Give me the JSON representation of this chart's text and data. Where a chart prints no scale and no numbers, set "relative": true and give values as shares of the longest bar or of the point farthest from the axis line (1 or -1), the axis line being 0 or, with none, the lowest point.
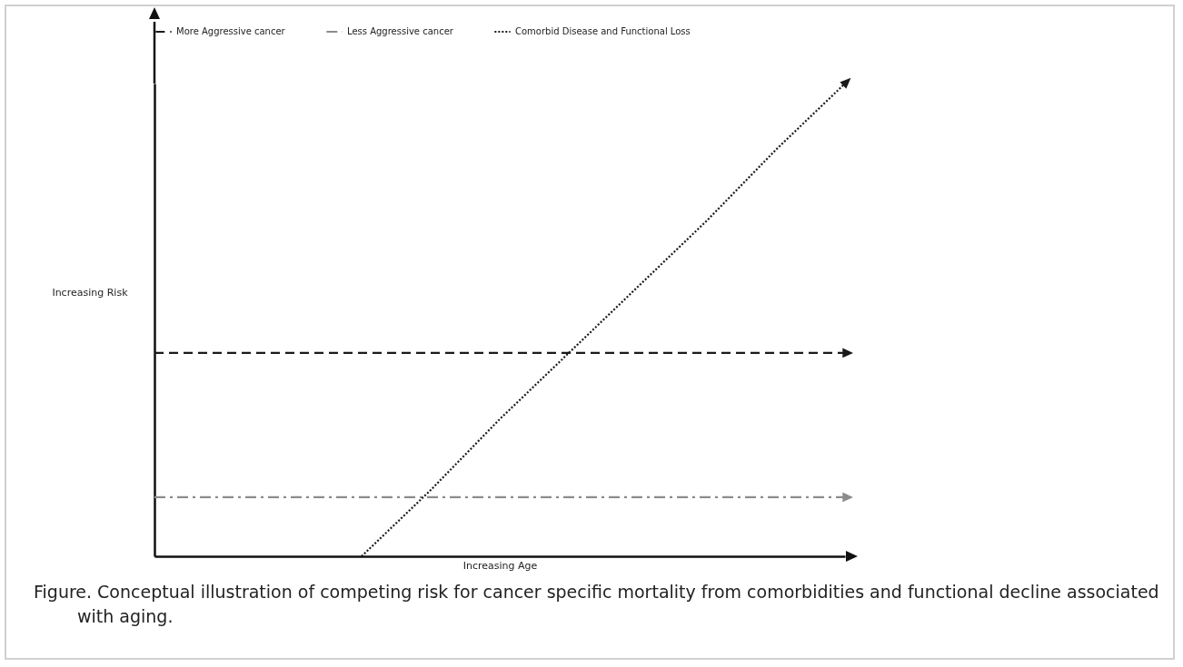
{
  "chart_data": {
    "type": "line",
    "relative": true,
    "xlabel": "Increasing Age",
    "ylabel": "Increasing Risk",
    "legend": "top",
    "grid": false,
    "marker": "none",
    "categories": [
      null,
      null,
      null,
      null,
      null,
      null,
      null,
      null,
      null,
      null,
      null
    ],
    "series": [
      {
        "name": "More Aggressive cancer",
        "color": "#1a1a1a",
        "line_style": "dashed",
        "values": [
          0.43,
          0.43,
          0.43,
          0.43,
          0.43,
          0.43,
          0.43,
          0.43,
          0.43,
          0.43,
          0.43
        ]
      },
      {
        "name": "Less Aggressive cancer",
        "color": "#8c8c8c",
        "line_style": "dashdot",
        "values": [
          0.125,
          0.125,
          0.125,
          0.125,
          0.125,
          0.125,
          0.125,
          0.125,
          0.125,
          0.125,
          0.125
        ]
      },
      {
        "name": "Comorbid Disease and Functional Loss",
        "color": "#1a1a1a",
        "line_style": "dotted",
        "values": [
          null,
          null,
          null,
          0,
          0.14,
          0.29,
          0.43,
          0.57,
          0.71,
          0.86,
          1
        ]
      }
    ],
    "annotations": [
      "Figure. Conceptual illustration of competing risk for cancer specific mortality from comorbidities and functional decline associated with aging."
    ]
  }
}
